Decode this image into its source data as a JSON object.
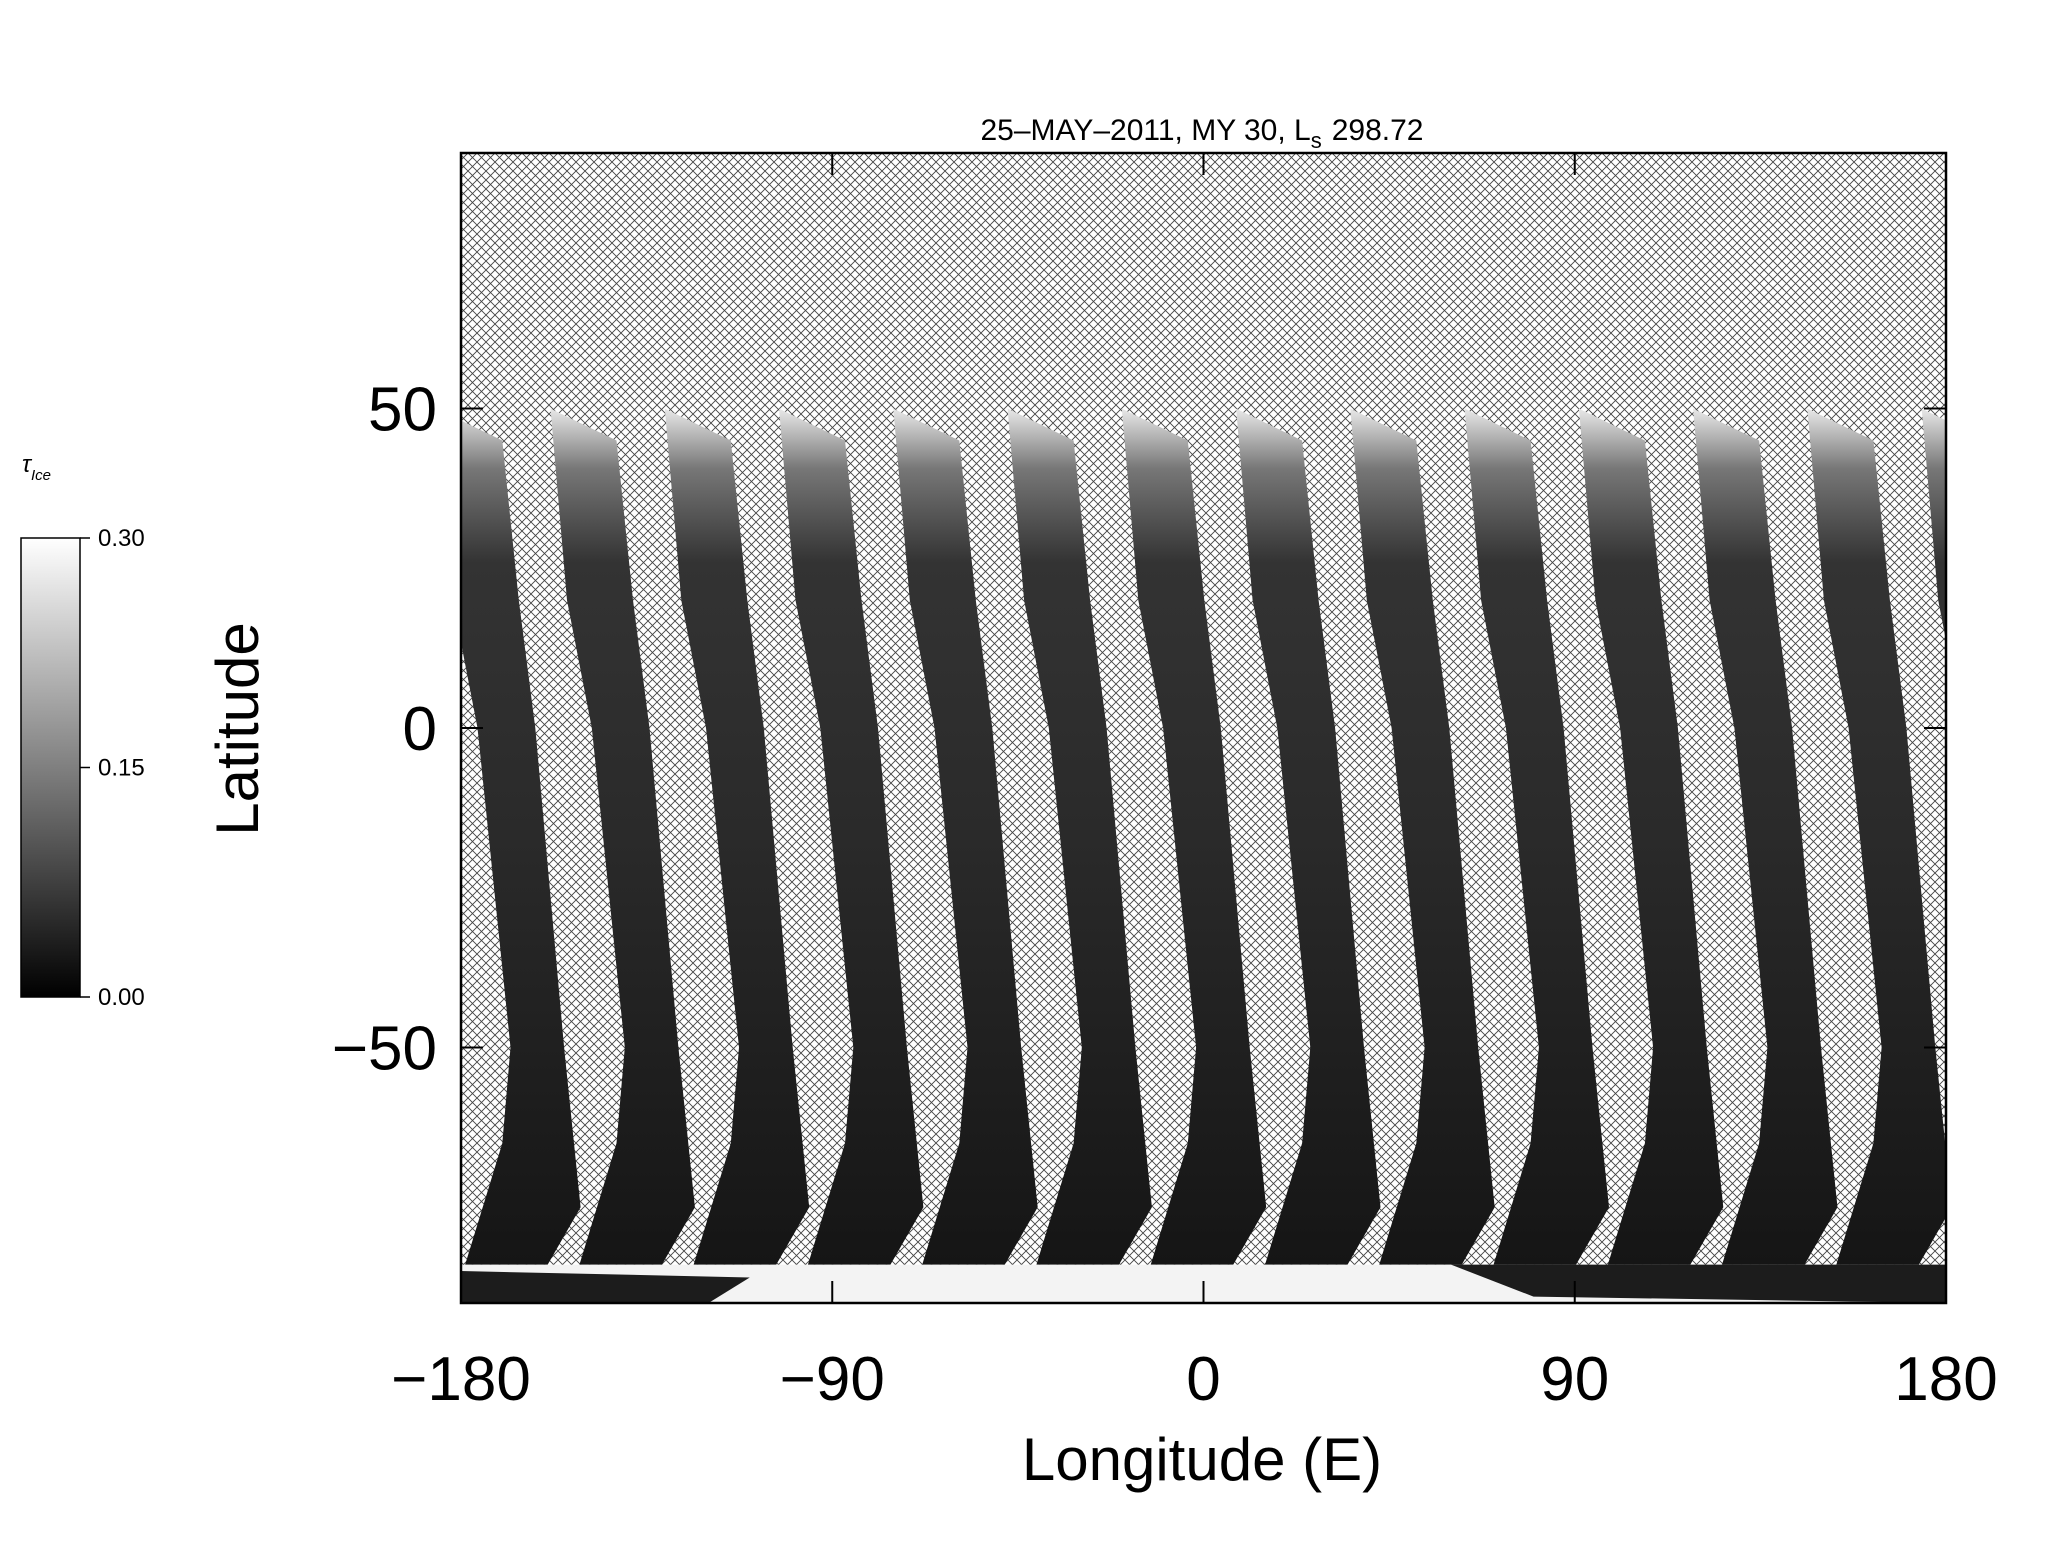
{
  "chart_data": {
    "type": "swath-map",
    "title": "25–MAY–2011, MY 30,  L",
    "title_subscript": "s",
    "title_tail": "298.72",
    "xlabel": "Longitude (E)",
    "ylabel": "Latitude",
    "xlim": [
      -180,
      180
    ],
    "ylim": [
      -90,
      90
    ],
    "xticks": [
      {
        "value": -180,
        "label": "−180"
      },
      {
        "value": -90,
        "label": "−90"
      },
      0,
      90,
      180
    ],
    "yticks": [
      {
        "value": -50,
        "label": "−50"
      },
      0,
      50
    ],
    "colorbar": {
      "label": "τ",
      "label_subscript": "Ice",
      "lim": [
        0,
        0.3
      ],
      "ticks": [
        {
          "value": 0,
          "label": "0.00"
        },
        {
          "value": 0.15,
          "label": "0.15"
        },
        {
          "value": 0.3,
          "label": "0.30"
        }
      ]
    }
  }
}
